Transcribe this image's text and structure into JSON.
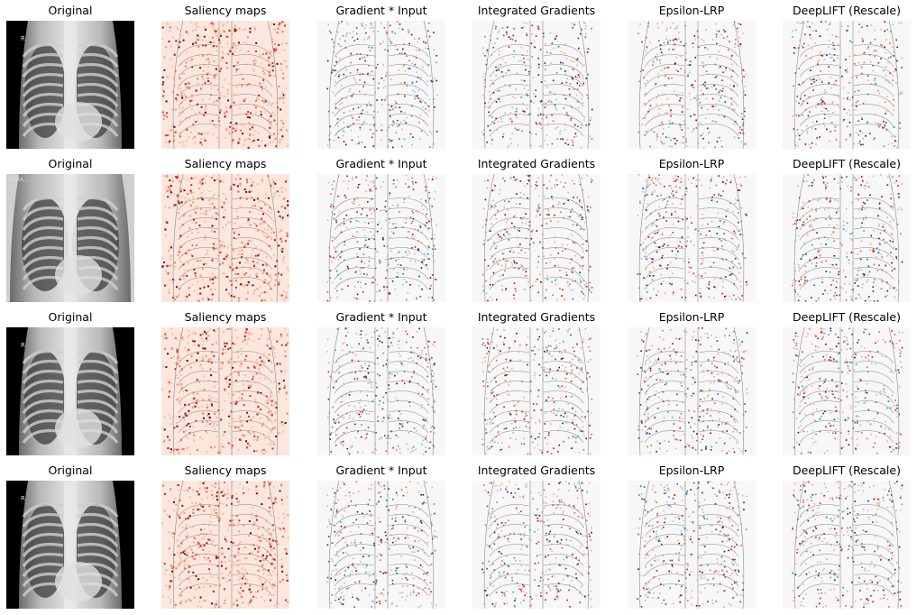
{
  "columns": [
    "Original",
    "Saliency maps",
    "Gradient * Input",
    "Integrated Gradients",
    "Epsilon-LRP",
    "DeepLIFT (Rescale)"
  ],
  "rows": [
    {
      "original_marker": "R",
      "variant": "narrow"
    },
    {
      "original_marker": "DCRA...",
      "variant": "wide"
    },
    {
      "original_marker": "R",
      "variant": "narrow"
    },
    {
      "original_marker": "R",
      "variant": "narrow"
    }
  ],
  "colors": {
    "background": "#ffffff",
    "heat_pos_dark": "#67000d",
    "heat_pos": "#d6604d",
    "heat_neg": "#4393c3",
    "heat_neg_dark": "#053061",
    "contour": "#8a8a8a"
  }
}
